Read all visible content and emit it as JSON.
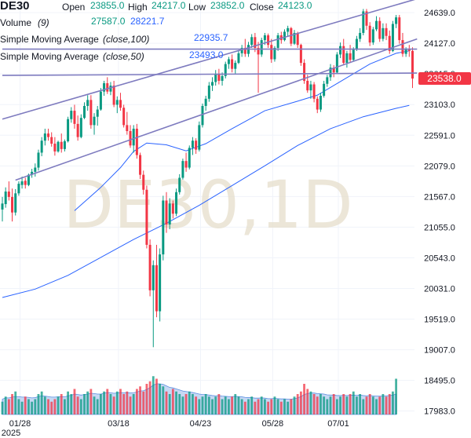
{
  "header": {
    "symbol": "DE30",
    "open_label": "Open",
    "open_value": "23855.0",
    "high_label": "High",
    "high_value": "24217.0",
    "low_label": "Low",
    "low_value": "23852.0",
    "close_label": "Close",
    "close_value": "24123.0"
  },
  "indicators": {
    "volume_label": "Volume",
    "volume_param": "(9)",
    "volume_value_1": "27587.0",
    "volume_value_2": "28221.7",
    "sma100_label": "Simple Moving Average",
    "sma100_param": "(close,100)",
    "sma100_value": "22935.7",
    "sma50_label": "Simple Moving Average",
    "sma50_param": "(close,50)",
    "sma50_value": "23493.0"
  },
  "watermark": "DE30,1D",
  "last_price_label": "23538.0",
  "colors": {
    "up": "#089981",
    "down": "#f23645",
    "trendline": "#7e7bbf",
    "sma": "#2962ff",
    "volume_area": "#aec7f0",
    "price_tag": "#f23645"
  },
  "chart_data": {
    "type": "candlestick",
    "symbol": "DE30",
    "timeframe": "1D",
    "x_tick_labels": [
      "01/28",
      "03/18",
      "04/23",
      "05/28",
      "07/01"
    ],
    "x_year_label": "2025",
    "y_tick_labels": [
      "24639.0",
      "24127.0",
      "23615.0",
      "23103.0",
      "22591.0",
      "22079.0",
      "21567.0",
      "21055.0",
      "20543.0",
      "20031.0",
      "19519.0",
      "19007.0",
      "18495.0",
      "17983.0"
    ],
    "ylim": [
      17900,
      24850
    ],
    "last_price": 23538.0,
    "candles": [
      [
        21350,
        21560,
        21150,
        21450
      ],
      [
        21440,
        21720,
        21380,
        21650
      ],
      [
        21650,
        21820,
        21500,
        21560
      ],
      [
        21560,
        21700,
        21150,
        21300
      ],
      [
        21300,
        21690,
        21250,
        21620
      ],
      [
        21620,
        21820,
        21580,
        21780
      ],
      [
        21760,
        21900,
        21700,
        21820
      ],
      [
        21830,
        21880,
        21700,
        21760
      ],
      [
        21760,
        21950,
        21740,
        21930
      ],
      [
        21930,
        22030,
        21880,
        21980
      ],
      [
        21980,
        22120,
        21900,
        22050
      ],
      [
        22050,
        22350,
        22000,
        22300
      ],
      [
        22300,
        22560,
        22240,
        22500
      ],
      [
        22500,
        22700,
        22420,
        22620
      ],
      [
        22620,
        22700,
        22500,
        22560
      ],
      [
        22560,
        22640,
        22400,
        22450
      ],
      [
        22450,
        22560,
        22250,
        22320
      ],
      [
        22320,
        22500,
        22300,
        22480
      ],
      [
        22480,
        22620,
        22300,
        22360
      ],
      [
        22360,
        22520,
        22320,
        22490
      ],
      [
        22490,
        22900,
        22470,
        22860
      ],
      [
        22860,
        23060,
        22800,
        23000
      ],
      [
        23000,
        23100,
        22700,
        22780
      ],
      [
        22780,
        22920,
        22500,
        22560
      ],
      [
        22560,
        22940,
        22540,
        22880
      ],
      [
        22880,
        23140,
        22860,
        23080
      ],
      [
        23080,
        23260,
        23000,
        23180
      ],
      [
        23180,
        23260,
        22700,
        22760
      ],
      [
        22760,
        22960,
        22600,
        22900
      ],
      [
        22900,
        23080,
        22750,
        23020
      ],
      [
        23020,
        23380,
        23000,
        23320
      ],
      [
        23320,
        23500,
        23250,
        23460
      ],
      [
        23460,
        23560,
        23280,
        23320
      ],
      [
        23320,
        23480,
        23260,
        23420
      ],
      [
        23420,
        23500,
        23060,
        23100
      ],
      [
        23100,
        23240,
        22960,
        23180
      ],
      [
        23180,
        23300,
        23000,
        23050
      ],
      [
        23050,
        23100,
        22720,
        22760
      ],
      [
        22760,
        22980,
        22600,
        22660
      ],
      [
        22660,
        22760,
        22380,
        22420
      ],
      [
        22420,
        22760,
        22300,
        22700
      ],
      [
        22700,
        22780,
        22200,
        22260
      ],
      [
        22260,
        22300,
        21860,
        21930
      ],
      [
        21930,
        22000,
        21600,
        21680
      ],
      [
        21680,
        21750,
        20700,
        20760
      ],
      [
        20760,
        20850,
        19900,
        20000
      ],
      [
        20000,
        20500,
        19050,
        20420
      ],
      [
        20420,
        20760,
        19550,
        19650
      ],
      [
        19650,
        20700,
        19480,
        20600
      ],
      [
        20600,
        21580,
        20500,
        21500
      ],
      [
        21500,
        21640,
        20960,
        21100
      ],
      [
        21100,
        21540,
        21020,
        21450
      ],
      [
        21450,
        21500,
        21200,
        21280
      ],
      [
        21280,
        21700,
        21240,
        21640
      ],
      [
        21640,
        21940,
        21600,
        21880
      ],
      [
        21880,
        22200,
        21850,
        22160
      ],
      [
        22160,
        22300,
        21980,
        22050
      ],
      [
        22050,
        22420,
        22020,
        22380
      ],
      [
        22380,
        22560,
        22260,
        22500
      ],
      [
        22500,
        22540,
        22280,
        22350
      ],
      [
        22350,
        22820,
        22320,
        22760
      ],
      [
        22760,
        23120,
        22720,
        23080
      ],
      [
        23080,
        23250,
        23000,
        23200
      ],
      [
        23200,
        23480,
        23150,
        23420
      ],
      [
        23420,
        23560,
        23330,
        23480
      ],
      [
        23480,
        23680,
        23420,
        23620
      ],
      [
        23620,
        23700,
        23440,
        23500
      ],
      [
        23500,
        23640,
        23420,
        23580
      ],
      [
        23580,
        23820,
        23540,
        23780
      ],
      [
        23780,
        23900,
        23700,
        23860
      ],
      [
        23860,
        23940,
        23640,
        23700
      ],
      [
        23700,
        23840,
        23620,
        23800
      ],
      [
        23800,
        24000,
        23780,
        23960
      ],
      [
        23960,
        24100,
        23900,
        24050
      ],
      [
        24050,
        24200,
        23900,
        23950
      ],
      [
        23950,
        24150,
        23900,
        24100
      ],
      [
        24100,
        24280,
        24050,
        24230
      ],
      [
        24230,
        24300,
        23980,
        24050
      ],
      [
        24050,
        24150,
        23300,
        23940
      ],
      [
        23940,
        24220,
        23900,
        24180
      ],
      [
        24180,
        24300,
        24100,
        24260
      ],
      [
        24260,
        24290,
        24050,
        24100
      ],
      [
        24100,
        24200,
        23800,
        23860
      ],
      [
        23860,
        24080,
        23820,
        24050
      ],
      [
        24050,
        24300,
        24000,
        24260
      ],
      [
        24260,
        24320,
        24120,
        24180
      ],
      [
        24180,
        24360,
        24160,
        24320
      ],
      [
        24320,
        24420,
        24240,
        24380
      ],
      [
        24380,
        24400,
        24080,
        24120
      ],
      [
        24120,
        24350,
        24100,
        24300
      ],
      [
        24300,
        24320,
        24050,
        24100
      ],
      [
        24100,
        24120,
        23750,
        23800
      ],
      [
        23800,
        23860,
        23450,
        23500
      ],
      [
        23500,
        23600,
        23300,
        23340
      ],
      [
        23340,
        23500,
        23200,
        23440
      ],
      [
        23440,
        23480,
        23140,
        23200
      ],
      [
        23200,
        23240,
        22960,
        23020
      ],
      [
        23020,
        23300,
        22980,
        23250
      ],
      [
        23250,
        23500,
        23220,
        23450
      ],
      [
        23450,
        23600,
        23400,
        23560
      ],
      [
        23560,
        23780,
        23500,
        23720
      ],
      [
        23720,
        23760,
        23560,
        23640
      ],
      [
        23640,
        23980,
        23620,
        23940
      ],
      [
        23940,
        24140,
        23880,
        24080
      ],
      [
        24080,
        24200,
        23760,
        23800
      ],
      [
        23800,
        24000,
        23720,
        23960
      ],
      [
        23960,
        24100,
        23800,
        23850
      ],
      [
        23850,
        24060,
        23820,
        24020
      ],
      [
        24020,
        24250,
        24000,
        24200
      ],
      [
        24200,
        24380,
        24150,
        24300
      ],
      [
        24300,
        24700,
        24260,
        24660
      ],
      [
        24660,
        24700,
        24350,
        24420
      ],
      [
        24420,
        24480,
        24080,
        24140
      ],
      [
        24140,
        24400,
        24100,
        24360
      ],
      [
        24360,
        24580,
        24330,
        24500
      ],
      [
        24500,
        24560,
        24150,
        24200
      ],
      [
        24200,
        24460,
        24160,
        24380
      ],
      [
        24380,
        24460,
        24180,
        24250
      ],
      [
        24250,
        24340,
        23950,
        24000
      ],
      [
        24000,
        24500,
        23980,
        24450
      ],
      [
        24450,
        24600,
        24380,
        24560
      ],
      [
        24560,
        24600,
        24120,
        24180
      ],
      [
        24180,
        24300,
        23900,
        23950
      ],
      [
        23950,
        24060,
        23900,
        24030
      ],
      [
        24030,
        24100,
        23900,
        24000
      ],
      [
        24000,
        24060,
        23380,
        23538
      ]
    ],
    "volume": [
      5,
      7,
      6,
      8,
      9,
      6,
      5,
      7,
      6,
      5,
      6,
      8,
      9,
      7,
      6,
      5,
      6,
      7,
      8,
      6,
      9,
      8,
      10,
      7,
      6,
      8,
      9,
      10,
      7,
      6,
      8,
      9,
      10,
      8,
      7,
      9,
      10,
      8,
      9,
      7,
      8,
      10,
      11,
      9,
      12,
      13,
      15,
      14,
      12,
      11,
      9,
      8,
      10,
      9,
      8,
      7,
      8,
      9,
      8,
      7,
      6,
      7,
      8,
      7,
      6,
      7,
      8,
      6,
      7,
      6,
      7,
      8,
      7,
      6,
      5,
      6,
      7,
      5,
      6,
      7,
      6,
      5,
      6,
      7,
      6,
      5,
      6,
      5,
      6,
      7,
      8,
      9,
      12,
      10,
      9,
      8,
      7,
      8,
      7,
      6,
      7,
      8,
      6,
      7,
      8,
      7,
      8,
      9,
      7,
      8,
      6,
      7,
      8,
      7,
      6,
      7,
      8,
      7,
      8,
      9,
      14
    ],
    "volume_avg": [
      6,
      6.5,
      6.5,
      6.8,
      7,
      7,
      6.8,
      6.8,
      6.7,
      6.5,
      6.6,
      7,
      7.3,
      7.2,
      7,
      6.8,
      6.8,
      6.9,
      7,
      6.9,
      7.3,
      7.5,
      8,
      7.8,
      7.6,
      7.8,
      8,
      8.3,
      8.2,
      8,
      8,
      8.3,
      8.6,
      8.5,
      8.3,
      8.4,
      8.6,
      8.5,
      8.6,
      8.4,
      8.5,
      8.8,
      9.2,
      9.3,
      9.8,
      10.5,
      11.5,
      12,
      12,
      11.8,
      11.2,
      10.6,
      10.4,
      10,
      9.6,
      9.2,
      9,
      8.8,
      8.6,
      8.3,
      8,
      7.8,
      7.8,
      7.6,
      7.4,
      7.3,
      7.4,
      7.2,
      7.1,
      7,
      7,
      7.1,
      7,
      6.9,
      6.7,
      6.6,
      6.6,
      6.4,
      6.4,
      6.5,
      6.4,
      6.2,
      6.2,
      6.3,
      6.2,
      6.1,
      6.1,
      6,
      6,
      6.2,
      6.5,
      7,
      7.8,
      8.2,
      8.4,
      8.4,
      8.2,
      8.1,
      8,
      7.7,
      7.6,
      7.6,
      7.4,
      7.4,
      7.5,
      7.4,
      7.5,
      7.6,
      7.5,
      7.6,
      7.4,
      7.3,
      7.4,
      7.3,
      7.2,
      7.2,
      7.3,
      7.3,
      7.4,
      7.6,
      8
    ],
    "sma100": [
      [
        0,
        19880
      ],
      [
        10,
        20020
      ],
      [
        20,
        20250
      ],
      [
        30,
        20550
      ],
      [
        40,
        20850
      ],
      [
        50,
        21120
      ],
      [
        60,
        21420
      ],
      [
        70,
        21750
      ],
      [
        80,
        22080
      ],
      [
        90,
        22420
      ],
      [
        100,
        22700
      ],
      [
        110,
        22900
      ],
      [
        120,
        23040
      ],
      [
        124,
        23090
      ]
    ],
    "sma50": [
      [
        22,
        21330
      ],
      [
        30,
        21720
      ],
      [
        36,
        22050
      ],
      [
        40,
        22320
      ],
      [
        44,
        22460
      ],
      [
        50,
        22430
      ],
      [
        56,
        22330
      ],
      [
        62,
        22450
      ],
      [
        70,
        22700
      ],
      [
        80,
        23000
      ],
      [
        90,
        23160
      ],
      [
        96,
        23260
      ],
      [
        104,
        23520
      ],
      [
        112,
        23780
      ],
      [
        120,
        23960
      ],
      [
        124,
        24000
      ]
    ],
    "trendlines": [
      {
        "from": [
          0,
          22860
        ],
        "to": [
          124,
          24870
        ]
      },
      {
        "from": [
          4,
          21840
        ],
        "to": [
          124,
          24200
        ]
      },
      {
        "from": [
          0,
          24030
        ],
        "to": [
          124,
          24030
        ]
      },
      {
        "from": [
          0,
          23590
        ],
        "to": [
          124,
          23630
        ]
      }
    ]
  }
}
